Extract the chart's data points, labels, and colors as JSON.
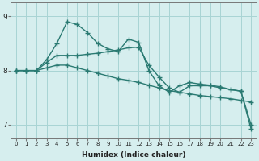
{
  "xlabel": "Humidex (Indice chaleur)",
  "x": [
    0,
    1,
    2,
    3,
    4,
    5,
    6,
    7,
    8,
    9,
    10,
    11,
    12,
    13,
    14,
    15,
    16,
    17,
    18,
    19,
    20,
    21,
    22,
    23
  ],
  "line1": [
    8.0,
    8.0,
    8.0,
    8.2,
    8.5,
    8.9,
    8.85,
    8.7,
    8.5,
    8.4,
    8.35,
    8.58,
    8.52,
    8.0,
    7.72,
    7.6,
    7.72,
    7.78,
    7.75,
    7.73,
    7.7,
    7.65,
    7.62,
    6.92
  ],
  "line2": [
    8.0,
    8.0,
    8.0,
    8.05,
    8.1,
    8.1,
    8.05,
    8.0,
    7.95,
    7.9,
    7.85,
    7.82,
    7.78,
    7.73,
    7.68,
    7.63,
    7.6,
    7.57,
    7.54,
    7.52,
    7.5,
    7.48,
    7.45,
    7.42
  ],
  "line3": [
    8.0,
    8.0,
    8.0,
    8.15,
    8.28,
    8.28,
    8.28,
    8.3,
    8.32,
    8.35,
    8.38,
    8.42,
    8.43,
    8.1,
    7.88,
    7.68,
    7.6,
    7.72,
    7.72,
    7.72,
    7.68,
    7.65,
    7.62,
    7.0
  ],
  "color": "#2a7a72",
  "bg_color": "#d6eeee",
  "grid_color": "#a8d4d4",
  "ylim_min": 6.75,
  "ylim_max": 9.25,
  "yticks": [
    7,
    8,
    9
  ],
  "marker": "+",
  "markersize": 4,
  "linewidth": 1.0
}
